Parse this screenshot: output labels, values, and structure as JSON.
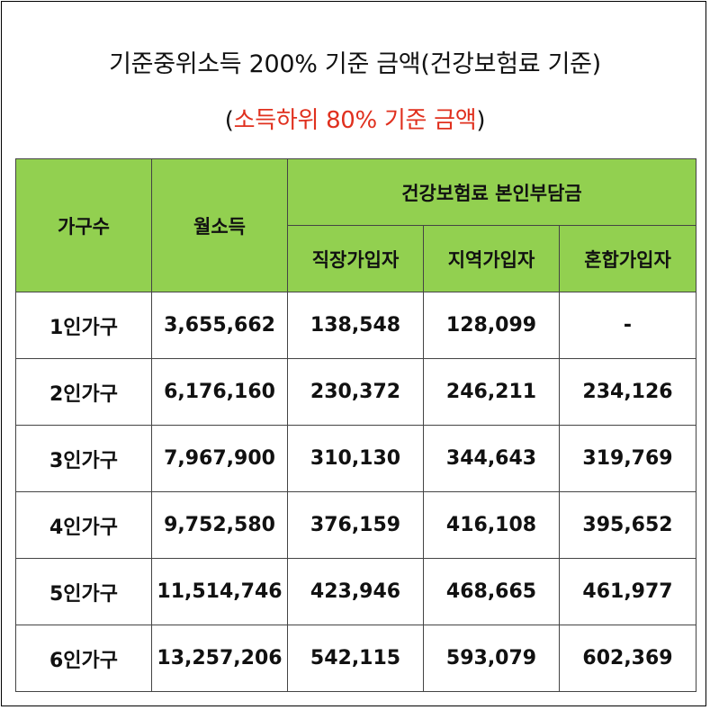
{
  "title": "기준중위소득 200% 기준 금액(건강보험료 기준)",
  "subtitle": {
    "open": "(",
    "text": "소득하위 80% 기준 금액",
    "close": ")"
  },
  "colors": {
    "header_bg": "#92d050",
    "subtitle_red": "#e0301e"
  },
  "table": {
    "headers": {
      "household": "가구수",
      "income": "월소득",
      "premium_group": "건강보험료 본인부담금",
      "workplace": "직장가입자",
      "regional": "지역가입자",
      "mixed": "혼합가입자"
    },
    "rows": [
      {
        "household": "1인가구",
        "income": "3,655,662",
        "workplace": "138,548",
        "regional": "128,099",
        "mixed": "-"
      },
      {
        "household": "2인가구",
        "income": "6,176,160",
        "workplace": "230,372",
        "regional": "246,211",
        "mixed": "234,126"
      },
      {
        "household": "3인가구",
        "income": "7,967,900",
        "workplace": "310,130",
        "regional": "344,643",
        "mixed": "319,769"
      },
      {
        "household": "4인가구",
        "income": "9,752,580",
        "workplace": "376,159",
        "regional": "416,108",
        "mixed": "395,652"
      },
      {
        "household": "5인가구",
        "income": "11,514,746",
        "workplace": "423,946",
        "regional": "468,665",
        "mixed": "461,977"
      },
      {
        "household": "6인가구",
        "income": "13,257,206",
        "workplace": "542,115",
        "regional": "593,079",
        "mixed": "602,369"
      }
    ]
  }
}
